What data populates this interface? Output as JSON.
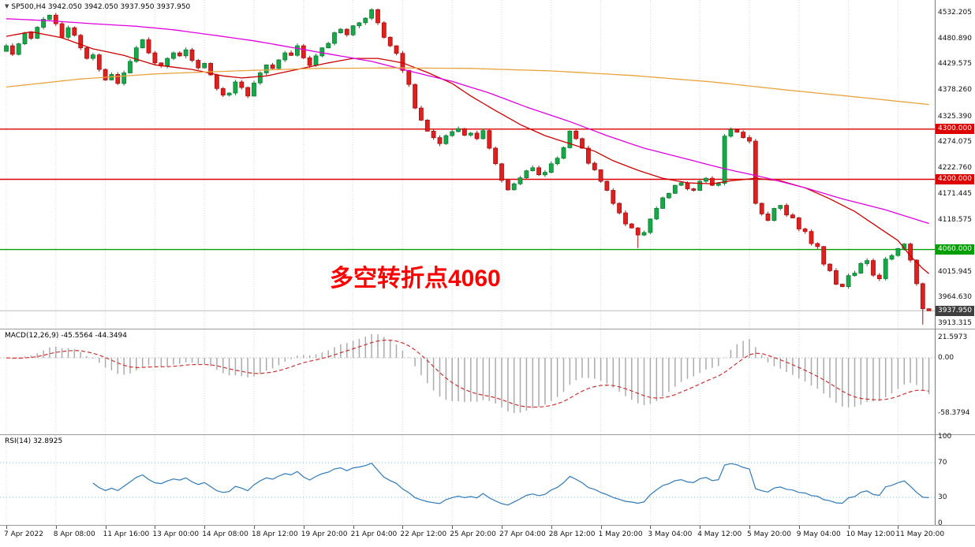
{
  "window": {
    "marker": "▼",
    "symbol_line": "SP500,H4 3942.050 3942.050 3937.950 3937.950"
  },
  "annotation": {
    "text": "多空转折点4060",
    "color": "#ff0000"
  },
  "macd_panel": {
    "label": "MACD(12,26,9) -45.5564 -44.3494",
    "axis_labels": [
      {
        "text": "21.5973",
        "value": 21.5973
      },
      {
        "text": "0.00",
        "value": 0
      },
      {
        "text": "-58.3794",
        "value": -58.3794
      }
    ]
  },
  "rsi_panel": {
    "label": "RSI(14) 32.8925",
    "axis_labels": [
      {
        "text": "100",
        "value": 100
      },
      {
        "text": "70",
        "value": 70
      },
      {
        "text": "30",
        "value": 30
      },
      {
        "text": "0",
        "value": 0
      }
    ],
    "levels": [
      70,
      30
    ]
  },
  "chart_data": {
    "type": "candlestick",
    "symbol": "SP500",
    "timeframe": "H4",
    "ohlc_current": {
      "open": 3942.05,
      "high": 3942.05,
      "low": 3937.95,
      "close": 3937.95
    },
    "colors": {
      "up": "#17a948",
      "up_stroke": "#0c7c34",
      "down": "#e01f1f",
      "down_stroke": "#a80f0f",
      "ma_fast": "#cc0000",
      "ma_mid": "#e000e0",
      "ma_slow": "#e8a33d",
      "macd_hist": "#ababab",
      "macd_signal": "#cc3333",
      "rsi": "#2f7ab8",
      "rsi_levels": "#8fb4d2",
      "grid": "#dadada",
      "level_red": "#dd0000",
      "level_green": "#009e00",
      "price_line": "#bdbdbd",
      "current_badge": "#3f3f3f"
    },
    "y_ticks": [
      "4532.205",
      "4480.890",
      "4429.575",
      "4378.260",
      "4325.390",
      "4274.075",
      "4222.760",
      "4171.445",
      "4118.575",
      "4015.945",
      "3964.630",
      "3913.315"
    ],
    "x_ticks": [
      {
        "bar": 0,
        "text": "7 Apr 2022"
      },
      {
        "bar": 8,
        "text": "8 Apr 08:00"
      },
      {
        "bar": 16,
        "text": "11 Apr 16:00"
      },
      {
        "bar": 24,
        "text": "13 Apr 00:00"
      },
      {
        "bar": 32,
        "text": "14 Apr 08:00"
      },
      {
        "bar": 40,
        "text": "18 Apr 12:00"
      },
      {
        "bar": 48,
        "text": "19 Apr 20:00"
      },
      {
        "bar": 56,
        "text": "21 Apr 04:00"
      },
      {
        "bar": 64,
        "text": "22 Apr 12:00"
      },
      {
        "bar": 72,
        "text": "25 Apr 20:00"
      },
      {
        "bar": 80,
        "text": "27 Apr 04:00"
      },
      {
        "bar": 88,
        "text": "28 Apr 12:00"
      },
      {
        "bar": 96,
        "text": "1 May 20:00"
      },
      {
        "bar": 104,
        "text": "3 May 04:00"
      },
      {
        "bar": 112,
        "text": "4 May 12:00"
      },
      {
        "bar": 120,
        "text": "5 May 20:00"
      },
      {
        "bar": 128,
        "text": "9 May 04:00"
      },
      {
        "bar": 136,
        "text": "10 May 12:00"
      },
      {
        "bar": 144,
        "text": "11 May 20:00"
      }
    ],
    "levels": [
      {
        "price": 4300,
        "label": "4300.000",
        "color": "#dd0000"
      },
      {
        "price": 4200,
        "label": "4200.000",
        "color": "#dd0000"
      },
      {
        "price": 4060,
        "label": "4060.000",
        "color": "#009e00"
      }
    ],
    "current_price": {
      "value": 3937.95,
      "label": "3937.950"
    },
    "candles": {
      "first_open": 4455,
      "closes": [
        4466,
        4449,
        4470,
        4492,
        4481,
        4503,
        4519,
        4527,
        4510,
        4483,
        4502,
        4487,
        4462,
        4441,
        4448,
        4419,
        4398,
        4409,
        4391,
        4412,
        4435,
        4462,
        4478,
        4452,
        4432,
        4426,
        4441,
        4452,
        4446,
        4458,
        4437,
        4422,
        4431,
        4408,
        4381,
        4368,
        4372,
        4394,
        4383,
        4366,
        4392,
        4412,
        4428,
        4421,
        4438,
        4452,
        4447,
        4466,
        4442,
        4427,
        4446,
        4462,
        4471,
        4492,
        4499,
        4488,
        4506,
        4512,
        4521,
        4538,
        4512,
        4483,
        4466,
        4451,
        4417,
        4389,
        4342,
        4318,
        4296,
        4283,
        4271,
        4287,
        4295,
        4301,
        4288,
        4292,
        4281,
        4297,
        4262,
        4231,
        4198,
        4179,
        4191,
        4203,
        4217,
        4223,
        4209,
        4214,
        4231,
        4242,
        4263,
        4296,
        4281,
        4262,
        4232,
        4219,
        4196,
        4178,
        4152,
        4133,
        4111,
        4103,
        4089,
        4094,
        4121,
        4142,
        4163,
        4172,
        4188,
        4193,
        4181,
        4178,
        4196,
        4202,
        4188,
        4192,
        4286,
        4299,
        4294,
        4283,
        4276,
        4152,
        4131,
        4118,
        4142,
        4148,
        4129,
        4123,
        4101,
        4096,
        4072,
        4066,
        4031,
        4018,
        3991,
        3986,
        4008,
        4013,
        4032,
        4038,
        4009,
        4002,
        4041,
        4048,
        4062,
        4071,
        4039,
        3992,
        3942.05,
        3937.95
      ],
      "high_overrides": {
        "59": 4541,
        "149": 3942.05
      },
      "low_overrides": {
        "102": 4063,
        "148": 3910.5,
        "149": 3937.95
      }
    },
    "overlays": [
      {
        "name": "ma-fast-red",
        "color": "#cc0000",
        "points": [
          [
            0,
            4485
          ],
          [
            4,
            4494
          ],
          [
            9,
            4482
          ],
          [
            14,
            4460
          ],
          [
            19,
            4447
          ],
          [
            24,
            4428
          ],
          [
            30,
            4419
          ],
          [
            35,
            4406
          ],
          [
            38,
            4402
          ],
          [
            42,
            4406
          ],
          [
            47,
            4419
          ],
          [
            52,
            4432
          ],
          [
            56,
            4441
          ],
          [
            60,
            4441
          ],
          [
            64,
            4432
          ],
          [
            68,
            4413
          ],
          [
            72,
            4391
          ],
          [
            75,
            4366
          ],
          [
            79,
            4337
          ],
          [
            83,
            4309
          ],
          [
            87,
            4287
          ],
          [
            91,
            4271
          ],
          [
            95,
            4256
          ],
          [
            98,
            4237
          ],
          [
            102,
            4218
          ],
          [
            106,
            4202
          ],
          [
            110,
            4193
          ],
          [
            114,
            4191
          ],
          [
            117,
            4197
          ],
          [
            121,
            4202
          ],
          [
            125,
            4197
          ],
          [
            129,
            4183
          ],
          [
            133,
            4161
          ],
          [
            137,
            4136
          ],
          [
            140,
            4111
          ],
          [
            144,
            4078
          ],
          [
            146,
            4047
          ],
          [
            148,
            4022
          ],
          [
            149,
            4012
          ]
        ]
      },
      {
        "name": "ma-medium-magenta",
        "color": "#e000e0",
        "points": [
          [
            0,
            4520
          ],
          [
            7,
            4516
          ],
          [
            14,
            4510
          ],
          [
            21,
            4505
          ],
          [
            27,
            4498
          ],
          [
            33,
            4488
          ],
          [
            40,
            4476
          ],
          [
            46,
            4463
          ],
          [
            52,
            4450
          ],
          [
            59,
            4435
          ],
          [
            65,
            4416
          ],
          [
            72,
            4395
          ],
          [
            78,
            4372
          ],
          [
            84,
            4344
          ],
          [
            91,
            4315
          ],
          [
            97,
            4287
          ],
          [
            103,
            4262
          ],
          [
            110,
            4240
          ],
          [
            116,
            4221
          ],
          [
            123,
            4202
          ],
          [
            129,
            4183
          ],
          [
            135,
            4161
          ],
          [
            142,
            4139
          ],
          [
            149,
            4112
          ]
        ]
      },
      {
        "name": "ma-slow-orange",
        "color": "#e8a33d",
        "points": [
          [
            0,
            4384
          ],
          [
            12,
            4400
          ],
          [
            24,
            4410
          ],
          [
            37,
            4416
          ],
          [
            50,
            4421
          ],
          [
            63,
            4422
          ],
          [
            75,
            4421
          ],
          [
            88,
            4416
          ],
          [
            101,
            4407
          ],
          [
            114,
            4394
          ],
          [
            126,
            4378
          ],
          [
            139,
            4362
          ],
          [
            149,
            4349
          ]
        ]
      }
    ],
    "indicators": [
      {
        "name": "MACD",
        "params": [
          12,
          26,
          9
        ],
        "current_values": [
          -45.5564,
          -44.3494
        ],
        "scale": [
          -80,
          30
        ]
      },
      {
        "name": "RSI",
        "params": [
          14
        ],
        "current_value": 32.8925,
        "scale": [
          0,
          100
        ]
      }
    ]
  }
}
